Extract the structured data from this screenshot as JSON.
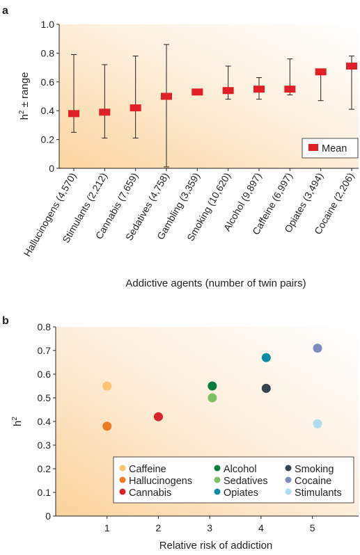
{
  "chart_data": [
    {
      "panel": "a",
      "type": "bar",
      "title": "",
      "xlabel": "Addictive agents (number of twin pairs)",
      "ylabel": "h2 ± range",
      "ylabel_parts": {
        "base": "h",
        "sup": "2",
        "rest": " ± range"
      },
      "ylim": [
        0,
        1.0
      ],
      "yticks": [
        0,
        0.2,
        0.4,
        0.6,
        0.8,
        1.0
      ],
      "ytick_labels": [
        "0",
        "0.2",
        "0.4",
        "0.6",
        "0.8",
        "1.0"
      ],
      "categories": [
        "Hallucinogens (4,570)",
        "Stimulants (2,212)",
        "Cannabis (7,659)",
        "Sedatives (4,758)",
        "Gambling (3,359)",
        "Smoking (10,620)",
        "Alcohol (9,897)",
        "Caffeine (6,997)",
        "Opiates (3,494)",
        "Cocaine (2,206)"
      ],
      "series": [
        {
          "name": "Mean",
          "values": [
            0.38,
            0.39,
            0.42,
            0.5,
            0.53,
            0.54,
            0.55,
            0.55,
            0.67,
            0.71
          ]
        }
      ],
      "range_low": [
        0.25,
        0.21,
        0.21,
        0.01,
        0.53,
        0.48,
        0.48,
        0.51,
        0.47,
        0.41
      ],
      "range_high": [
        0.79,
        0.72,
        0.78,
        0.86,
        0.53,
        0.71,
        0.63,
        0.76,
        0.67,
        0.78
      ],
      "legend": {
        "label": "Mean",
        "placement": "bottom-right"
      },
      "marker_color": "#e01f26",
      "background": "orange gradient fading to white"
    },
    {
      "panel": "b",
      "type": "scatter",
      "title": "",
      "xlabel": "Relative risk of addiction",
      "ylabel": "h2",
      "ylabel_parts": {
        "base": "h",
        "sup": "2"
      },
      "xlim": [
        0,
        5.9
      ],
      "ylim": [
        0,
        0.8
      ],
      "xticks": [
        1,
        2,
        3,
        4,
        5
      ],
      "xtick_labels": [
        "1",
        "2",
        "3",
        "4",
        "5"
      ],
      "yticks": [
        0,
        0.1,
        0.2,
        0.3,
        0.4,
        0.5,
        0.6,
        0.7,
        0.8
      ],
      "ytick_labels": [
        "0",
        "0.1",
        "0.2",
        "0.3",
        "0.4",
        "0.5",
        "0.6",
        "0.7",
        "0.8"
      ],
      "series": [
        {
          "name": "Caffeine",
          "x": 1.0,
          "y": 0.55,
          "color": "#fbc473"
        },
        {
          "name": "Hallucinogens",
          "x": 1.0,
          "y": 0.38,
          "color": "#ea7b23"
        },
        {
          "name": "Cannabis",
          "x": 2.0,
          "y": 0.42,
          "color": "#d8232a"
        },
        {
          "name": "Alcohol",
          "x": 3.05,
          "y": 0.55,
          "color": "#0a7d3c"
        },
        {
          "name": "Sedatives",
          "x": 3.05,
          "y": 0.5,
          "color": "#7cbf67"
        },
        {
          "name": "Opiates",
          "x": 4.1,
          "y": 0.67,
          "color": "#0a8ca3"
        },
        {
          "name": "Smoking",
          "x": 4.1,
          "y": 0.54,
          "color": "#34434d"
        },
        {
          "name": "Cocaine",
          "x": 5.1,
          "y": 0.71,
          "color": "#7d8cbd"
        },
        {
          "name": "Stimulants",
          "x": 5.1,
          "y": 0.39,
          "color": "#afdced"
        }
      ],
      "legend": {
        "placement": "bottom-right",
        "columns": 3
      },
      "background": "orange gradient fading to white"
    }
  ]
}
